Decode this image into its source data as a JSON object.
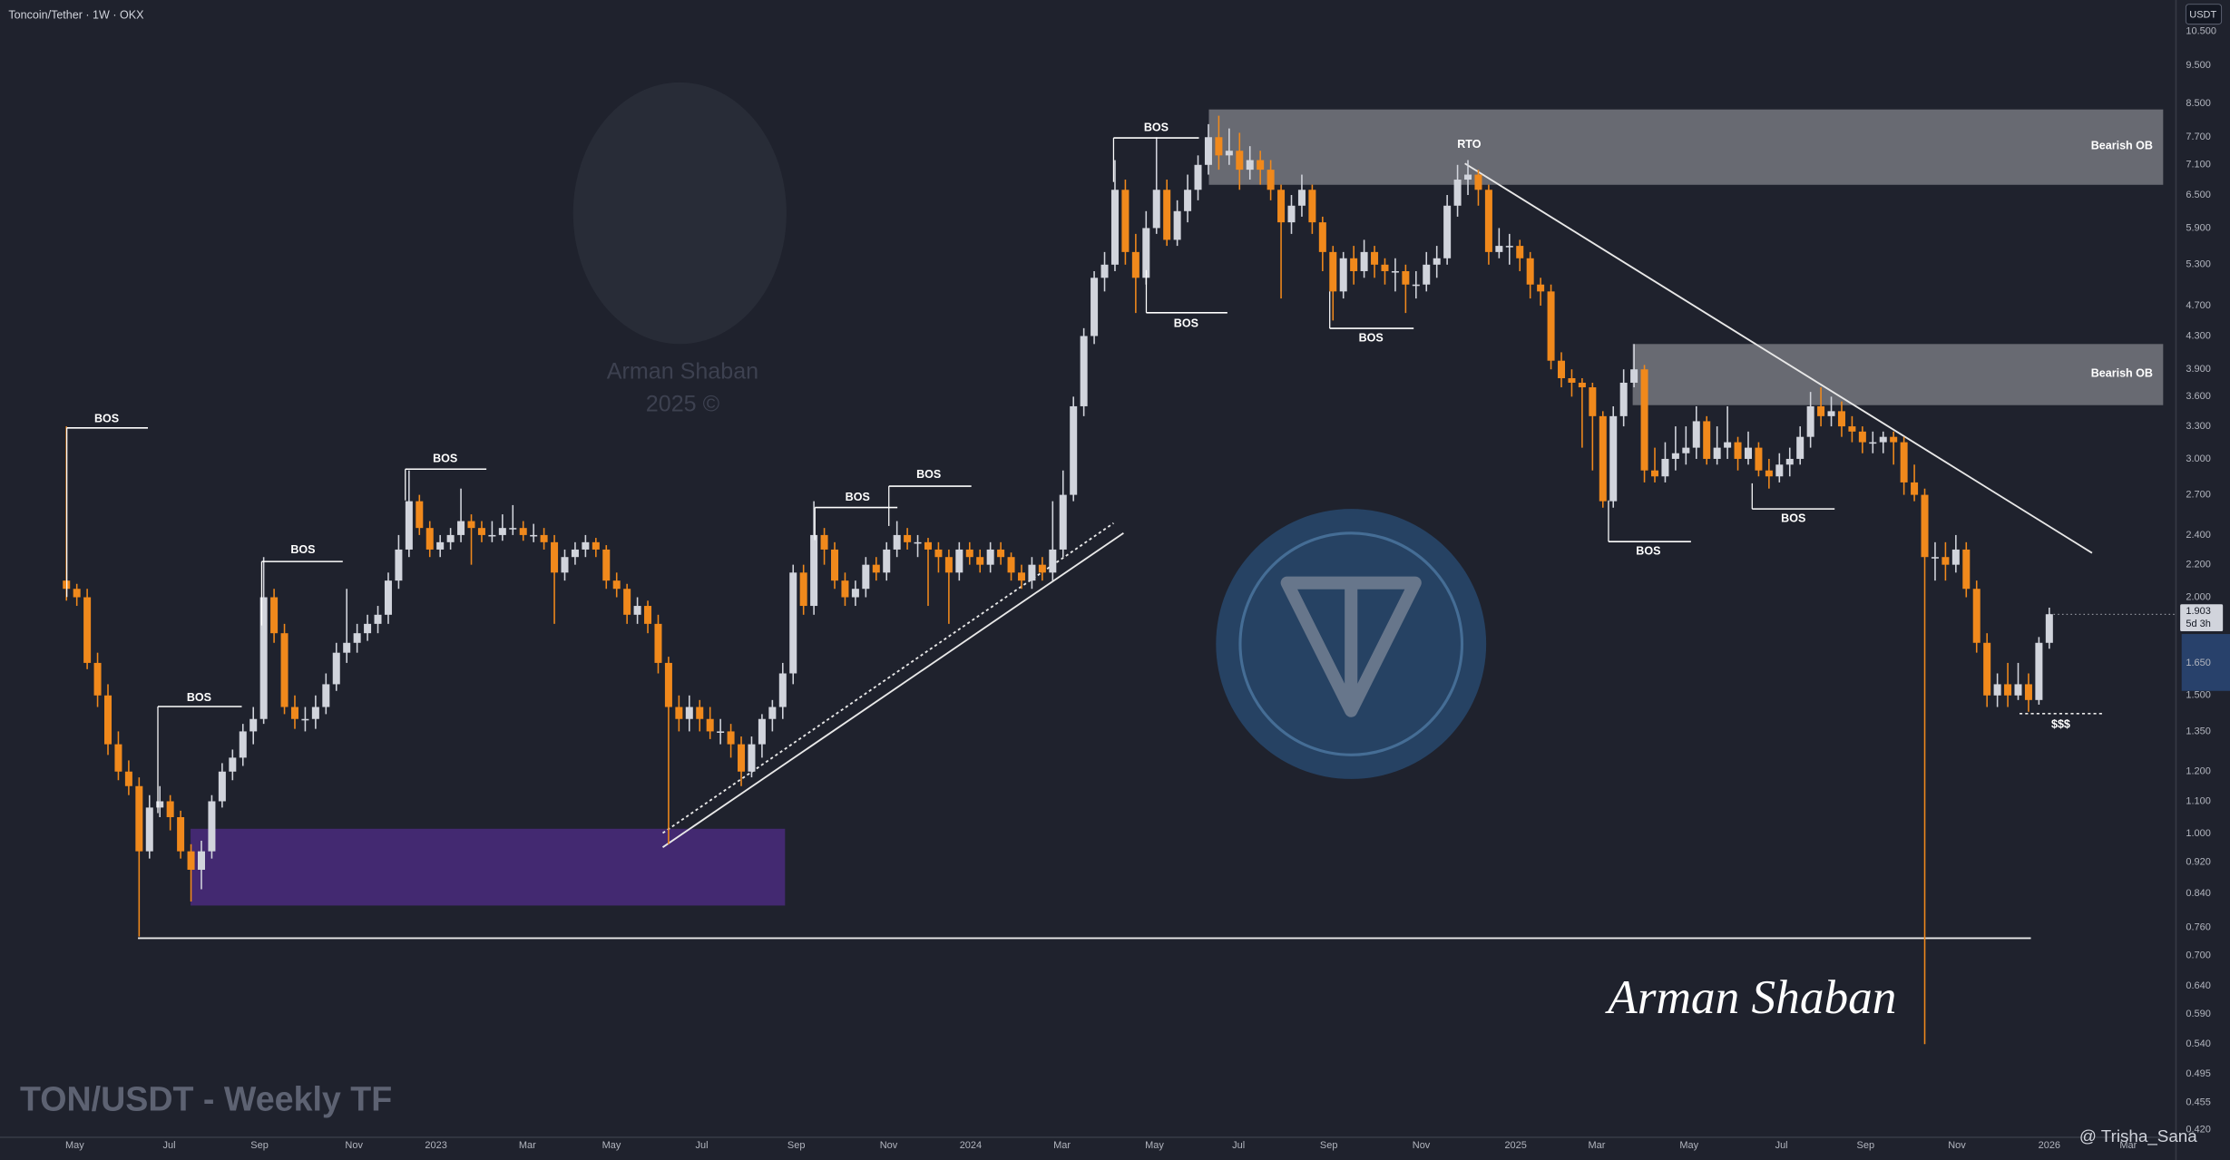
{
  "chart_data": {
    "type": "candlestick",
    "title": "Toncoin/Tether · 1W · OKX",
    "subtitle": "TON/USDT - Weekly TF",
    "currency": "USDT",
    "countdown": "5d 3h",
    "log_scale": true,
    "grid": false,
    "up_color": "#d1d4dc",
    "down_color": "#f0891c",
    "candles": [
      [
        2.1,
        3.3,
        1.98,
        2.05
      ],
      [
        2.05,
        2.08,
        1.95,
        2.0
      ],
      [
        2.0,
        2.05,
        1.62,
        1.65
      ],
      [
        1.65,
        1.7,
        1.45,
        1.5
      ],
      [
        1.5,
        1.55,
        1.26,
        1.3
      ],
      [
        1.3,
        1.35,
        1.17,
        1.2
      ],
      [
        1.2,
        1.24,
        1.12,
        1.15
      ],
      [
        1.15,
        1.18,
        0.74,
        0.95
      ],
      [
        0.95,
        1.12,
        0.93,
        1.08
      ],
      [
        1.08,
        1.15,
        1.05,
        1.1
      ],
      [
        1.1,
        1.12,
        1.01,
        1.05
      ],
      [
        1.05,
        1.07,
        0.93,
        0.95
      ],
      [
        0.95,
        0.97,
        0.82,
        0.9
      ],
      [
        0.9,
        0.98,
        0.85,
        0.95
      ],
      [
        0.95,
        1.12,
        0.93,
        1.1
      ],
      [
        1.1,
        1.23,
        1.08,
        1.2
      ],
      [
        1.2,
        1.28,
        1.17,
        1.25
      ],
      [
        1.25,
        1.38,
        1.22,
        1.35
      ],
      [
        1.35,
        1.45,
        1.3,
        1.4
      ],
      [
        1.4,
        2.25,
        1.38,
        2.0
      ],
      [
        2.0,
        2.05,
        1.75,
        1.8
      ],
      [
        1.8,
        1.85,
        1.42,
        1.45
      ],
      [
        1.45,
        1.5,
        1.36,
        1.4
      ],
      [
        1.4,
        1.45,
        1.35,
        1.4
      ],
      [
        1.4,
        1.5,
        1.36,
        1.45
      ],
      [
        1.45,
        1.6,
        1.42,
        1.55
      ],
      [
        1.55,
        1.75,
        1.52,
        1.7
      ],
      [
        1.7,
        2.05,
        1.65,
        1.75
      ],
      [
        1.75,
        1.85,
        1.7,
        1.8
      ],
      [
        1.8,
        1.9,
        1.76,
        1.85
      ],
      [
        1.85,
        1.95,
        1.8,
        1.9
      ],
      [
        1.9,
        2.15,
        1.85,
        2.1
      ],
      [
        2.1,
        2.4,
        2.05,
        2.3
      ],
      [
        2.3,
        2.9,
        2.25,
        2.65
      ],
      [
        2.65,
        2.7,
        2.4,
        2.45
      ],
      [
        2.45,
        2.5,
        2.25,
        2.3
      ],
      [
        2.3,
        2.4,
        2.25,
        2.35
      ],
      [
        2.35,
        2.45,
        2.3,
        2.4
      ],
      [
        2.4,
        2.75,
        2.35,
        2.5
      ],
      [
        2.5,
        2.55,
        2.2,
        2.45
      ],
      [
        2.45,
        2.5,
        2.35,
        2.4
      ],
      [
        2.4,
        2.5,
        2.35,
        2.4
      ],
      [
        2.4,
        2.55,
        2.36,
        2.45
      ],
      [
        2.45,
        2.62,
        2.4,
        2.45
      ],
      [
        2.45,
        2.5,
        2.36,
        2.4
      ],
      [
        2.4,
        2.48,
        2.35,
        2.4
      ],
      [
        2.4,
        2.45,
        2.3,
        2.35
      ],
      [
        2.35,
        2.4,
        1.85,
        2.15
      ],
      [
        2.15,
        2.3,
        2.1,
        2.25
      ],
      [
        2.25,
        2.35,
        2.2,
        2.3
      ],
      [
        2.3,
        2.4,
        2.25,
        2.35
      ],
      [
        2.35,
        2.38,
        2.25,
        2.3
      ],
      [
        2.3,
        2.33,
        2.05,
        2.1
      ],
      [
        2.1,
        2.15,
        2.0,
        2.05
      ],
      [
        2.05,
        2.08,
        1.85,
        1.9
      ],
      [
        1.9,
        2.0,
        1.85,
        1.95
      ],
      [
        1.95,
        1.98,
        1.8,
        1.85
      ],
      [
        1.85,
        1.9,
        1.6,
        1.65
      ],
      [
        1.65,
        1.68,
        0.97,
        1.45
      ],
      [
        1.45,
        1.5,
        1.35,
        1.4
      ],
      [
        1.4,
        1.5,
        1.35,
        1.45
      ],
      [
        1.45,
        1.48,
        1.35,
        1.4
      ],
      [
        1.4,
        1.45,
        1.32,
        1.35
      ],
      [
        1.35,
        1.4,
        1.3,
        1.35
      ],
      [
        1.35,
        1.38,
        1.25,
        1.3
      ],
      [
        1.3,
        1.33,
        1.15,
        1.2
      ],
      [
        1.2,
        1.33,
        1.18,
        1.3
      ],
      [
        1.3,
        1.42,
        1.25,
        1.4
      ],
      [
        1.4,
        1.48,
        1.35,
        1.45
      ],
      [
        1.45,
        1.65,
        1.4,
        1.6
      ],
      [
        1.6,
        2.2,
        1.55,
        2.15
      ],
      [
        2.15,
        2.2,
        1.9,
        1.95
      ],
      [
        1.95,
        2.65,
        1.9,
        2.4
      ],
      [
        2.4,
        2.45,
        2.2,
        2.3
      ],
      [
        2.3,
        2.35,
        2.05,
        2.1
      ],
      [
        2.1,
        2.15,
        1.95,
        2.0
      ],
      [
        2.0,
        2.1,
        1.95,
        2.05
      ],
      [
        2.05,
        2.25,
        2.0,
        2.2
      ],
      [
        2.2,
        2.25,
        2.1,
        2.15
      ],
      [
        2.15,
        2.35,
        2.1,
        2.3
      ],
      [
        2.3,
        2.5,
        2.25,
        2.4
      ],
      [
        2.4,
        2.45,
        2.3,
        2.35
      ],
      [
        2.35,
        2.4,
        2.25,
        2.35
      ],
      [
        2.35,
        2.38,
        1.95,
        2.3
      ],
      [
        2.3,
        2.35,
        2.15,
        2.25
      ],
      [
        2.25,
        2.3,
        1.85,
        2.15
      ],
      [
        2.15,
        2.35,
        2.1,
        2.3
      ],
      [
        2.3,
        2.35,
        2.2,
        2.25
      ],
      [
        2.25,
        2.3,
        2.15,
        2.2
      ],
      [
        2.2,
        2.35,
        2.15,
        2.3
      ],
      [
        2.3,
        2.35,
        2.2,
        2.25
      ],
      [
        2.25,
        2.28,
        2.1,
        2.15
      ],
      [
        2.15,
        2.2,
        2.05,
        2.1
      ],
      [
        2.1,
        2.25,
        2.05,
        2.2
      ],
      [
        2.2,
        2.25,
        2.1,
        2.15
      ],
      [
        2.15,
        2.65,
        2.1,
        2.3
      ],
      [
        2.3,
        2.9,
        2.25,
        2.7
      ],
      [
        2.7,
        3.6,
        2.65,
        3.5
      ],
      [
        3.5,
        4.4,
        3.4,
        4.3
      ],
      [
        4.3,
        5.2,
        4.2,
        5.1
      ],
      [
        5.1,
        5.5,
        4.9,
        5.3
      ],
      [
        5.3,
        7.2,
        5.2,
        6.6
      ],
      [
        6.6,
        6.8,
        5.3,
        5.5
      ],
      [
        5.5,
        5.8,
        4.6,
        5.1
      ],
      [
        5.1,
        6.2,
        5.0,
        5.9
      ],
      [
        5.9,
        7.7,
        5.8,
        6.6
      ],
      [
        6.6,
        6.8,
        5.6,
        5.7
      ],
      [
        5.7,
        6.4,
        5.6,
        6.2
      ],
      [
        6.2,
        6.9,
        6.0,
        6.6
      ],
      [
        6.6,
        7.3,
        6.4,
        7.1
      ],
      [
        7.1,
        8.0,
        6.9,
        7.7
      ],
      [
        7.7,
        8.2,
        7.0,
        7.3
      ],
      [
        7.3,
        7.9,
        7.1,
        7.4
      ],
      [
        7.4,
        7.8,
        6.6,
        7.0
      ],
      [
        7.0,
        7.5,
        6.8,
        7.2
      ],
      [
        7.2,
        7.4,
        6.7,
        7.0
      ],
      [
        7.0,
        7.2,
        6.4,
        6.6
      ],
      [
        6.6,
        6.7,
        4.8,
        6.0
      ],
      [
        6.0,
        6.5,
        5.8,
        6.3
      ],
      [
        6.3,
        6.9,
        6.1,
        6.6
      ],
      [
        6.6,
        6.7,
        5.8,
        6.0
      ],
      [
        6.0,
        6.1,
        5.2,
        5.5
      ],
      [
        5.5,
        5.6,
        4.5,
        4.9
      ],
      [
        4.9,
        5.5,
        4.8,
        5.4
      ],
      [
        5.4,
        5.6,
        5.0,
        5.2
      ],
      [
        5.2,
        5.7,
        5.1,
        5.5
      ],
      [
        5.5,
        5.6,
        5.1,
        5.3
      ],
      [
        5.3,
        5.4,
        5.0,
        5.2
      ],
      [
        5.2,
        5.4,
        4.9,
        5.2
      ],
      [
        5.2,
        5.3,
        4.6,
        5.0
      ],
      [
        5.0,
        5.2,
        4.8,
        5.0
      ],
      [
        5.0,
        5.5,
        4.9,
        5.3
      ],
      [
        5.3,
        5.6,
        5.1,
        5.4
      ],
      [
        5.4,
        6.5,
        5.3,
        6.3
      ],
      [
        6.3,
        7.1,
        6.1,
        6.8
      ],
      [
        6.8,
        7.2,
        6.5,
        6.9
      ],
      [
        6.9,
        7.0,
        6.3,
        6.6
      ],
      [
        6.6,
        6.7,
        5.3,
        5.5
      ],
      [
        5.5,
        5.9,
        5.4,
        5.6
      ],
      [
        5.6,
        5.8,
        5.3,
        5.6
      ],
      [
        5.6,
        5.7,
        5.2,
        5.4
      ],
      [
        5.4,
        5.5,
        4.8,
        5.0
      ],
      [
        5.0,
        5.1,
        4.7,
        4.9
      ],
      [
        4.9,
        5.0,
        3.9,
        4.0
      ],
      [
        4.0,
        4.1,
        3.7,
        3.8
      ],
      [
        3.8,
        3.9,
        3.6,
        3.75
      ],
      [
        3.75,
        3.8,
        3.1,
        3.7
      ],
      [
        3.7,
        3.75,
        2.9,
        3.4
      ],
      [
        3.4,
        3.45,
        2.6,
        2.65
      ],
      [
        2.65,
        3.5,
        2.6,
        3.4
      ],
      [
        3.4,
        3.9,
        3.3,
        3.75
      ],
      [
        3.75,
        4.2,
        3.7,
        3.9
      ],
      [
        3.9,
        3.95,
        2.8,
        2.9
      ],
      [
        2.9,
        3.1,
        2.8,
        2.85
      ],
      [
        2.85,
        3.15,
        2.8,
        3.0
      ],
      [
        3.0,
        3.3,
        2.9,
        3.05
      ],
      [
        3.05,
        3.3,
        2.95,
        3.1
      ],
      [
        3.1,
        3.5,
        3.0,
        3.35
      ],
      [
        3.35,
        3.4,
        2.95,
        3.0
      ],
      [
        3.0,
        3.3,
        2.95,
        3.1
      ],
      [
        3.1,
        3.5,
        3.0,
        3.15
      ],
      [
        3.15,
        3.2,
        2.9,
        3.0
      ],
      [
        3.0,
        3.25,
        2.95,
        3.1
      ],
      [
        3.1,
        3.15,
        2.85,
        2.9
      ],
      [
        2.9,
        3.0,
        2.75,
        2.85
      ],
      [
        2.85,
        3.05,
        2.8,
        2.95
      ],
      [
        2.95,
        3.1,
        2.85,
        3.0
      ],
      [
        3.0,
        3.3,
        2.95,
        3.2
      ],
      [
        3.2,
        3.65,
        3.1,
        3.5
      ],
      [
        3.5,
        3.7,
        3.3,
        3.4
      ],
      [
        3.4,
        3.6,
        3.3,
        3.45
      ],
      [
        3.45,
        3.55,
        3.2,
        3.3
      ],
      [
        3.3,
        3.4,
        3.15,
        3.25
      ],
      [
        3.25,
        3.3,
        3.05,
        3.15
      ],
      [
        3.15,
        3.25,
        3.05,
        3.15
      ],
      [
        3.15,
        3.25,
        3.05,
        3.2
      ],
      [
        3.2,
        3.25,
        2.95,
        3.15
      ],
      [
        3.15,
        3.2,
        2.7,
        2.8
      ],
      [
        2.8,
        2.95,
        2.65,
        2.7
      ],
      [
        2.7,
        2.75,
        0.54,
        2.25
      ],
      [
        2.25,
        2.35,
        2.1,
        2.25
      ],
      [
        2.25,
        2.35,
        2.1,
        2.2
      ],
      [
        2.2,
        2.4,
        2.15,
        2.3
      ],
      [
        2.3,
        2.35,
        2.0,
        2.05
      ],
      [
        2.05,
        2.1,
        1.7,
        1.75
      ],
      [
        1.75,
        1.8,
        1.45,
        1.5
      ],
      [
        1.5,
        1.6,
        1.45,
        1.55
      ],
      [
        1.55,
        1.65,
        1.45,
        1.5
      ],
      [
        1.5,
        1.65,
        1.48,
        1.55
      ],
      [
        1.55,
        1.6,
        1.43,
        1.48
      ],
      [
        1.48,
        1.78,
        1.46,
        1.75
      ],
      [
        1.75,
        1.94,
        1.72,
        1.903
      ]
    ],
    "xlim": [
      -6.4,
      203.2
    ],
    "xticks": [
      {
        "value": 0.8,
        "label": "May"
      },
      {
        "value": 9.9,
        "label": "Jul"
      },
      {
        "value": 18.6,
        "label": "Sep"
      },
      {
        "value": 27.7,
        "label": "Nov"
      },
      {
        "value": 35.6,
        "label": "2023"
      },
      {
        "value": 44.4,
        "label": "Mar"
      },
      {
        "value": 52.5,
        "label": "May"
      },
      {
        "value": 61.2,
        "label": "Jul"
      },
      {
        "value": 70.3,
        "label": "Sep"
      },
      {
        "value": 79.2,
        "label": "Nov"
      },
      {
        "value": 87.1,
        "label": "2024"
      },
      {
        "value": 95.9,
        "label": "Mar"
      },
      {
        "value": 104.8,
        "label": "May"
      },
      {
        "value": 112.9,
        "label": "Jul"
      },
      {
        "value": 121.6,
        "label": "Sep"
      },
      {
        "value": 130.5,
        "label": "Nov"
      },
      {
        "value": 139.6,
        "label": "2025"
      },
      {
        "value": 147.4,
        "label": "Mar"
      },
      {
        "value": 156.3,
        "label": "May"
      },
      {
        "value": 165.2,
        "label": "Jul"
      },
      {
        "value": 173.3,
        "label": "Sep"
      },
      {
        "value": 182.1,
        "label": "Nov"
      },
      {
        "value": 191.0,
        "label": "2026"
      },
      {
        "value": 198.6,
        "label": "Mar"
      }
    ],
    "ylim": [
      0.411,
      11.51
    ],
    "yticks": [
      {
        "value": 10.5,
        "label": "10.500"
      },
      {
        "value": 9.5,
        "label": "9.500"
      },
      {
        "value": 8.5,
        "label": "8.500"
      },
      {
        "value": 7.7,
        "label": "7.700"
      },
      {
        "value": 7.1,
        "label": "7.100"
      },
      {
        "value": 6.5,
        "label": "6.500"
      },
      {
        "value": 5.9,
        "label": "5.900"
      },
      {
        "value": 5.3,
        "label": "5.300"
      },
      {
        "value": 4.7,
        "label": "4.700"
      },
      {
        "value": 4.3,
        "label": "4.300"
      },
      {
        "value": 3.9,
        "label": "3.900"
      },
      {
        "value": 3.6,
        "label": "3.600"
      },
      {
        "value": 3.3,
        "label": "3.300"
      },
      {
        "value": 3,
        "label": "3.000"
      },
      {
        "value": 2.7,
        "label": "2.700"
      },
      {
        "value": 2.4,
        "label": "2.400"
      },
      {
        "value": 2.2,
        "label": "2.200"
      },
      {
        "value": 2,
        "label": "2.000"
      },
      {
        "value": 1.65,
        "label": "1.650"
      },
      {
        "value": 1.5,
        "label": "1.500"
      },
      {
        "value": 1.35,
        "label": "1.350"
      },
      {
        "value": 1.2,
        "label": "1.200"
      },
      {
        "value": 1.1,
        "label": "1.100"
      },
      {
        "value": 1,
        "label": "1.000"
      },
      {
        "value": 0.92,
        "label": "0.920"
      },
      {
        "value": 0.84,
        "label": "0.840"
      },
      {
        "value": 0.76,
        "label": "0.760"
      },
      {
        "value": 0.7,
        "label": "0.700"
      },
      {
        "value": 0.64,
        "label": "0.640"
      },
      {
        "value": 0.59,
        "label": "0.590"
      },
      {
        "value": 0.54,
        "label": "0.540"
      },
      {
        "value": 0.495,
        "label": "0.495"
      },
      {
        "value": 0.455,
        "label": "0.455"
      },
      {
        "value": 0.42,
        "label": "0.420"
      }
    ],
    "annotations": [
      "BOS",
      "BOS",
      "BOS",
      "BOS",
      "BOS",
      "BOS",
      "BOS",
      "BOS",
      "BOS",
      "BOS",
      "BOS",
      "RTO",
      "Bearish OB",
      "Bearish OB",
      "$$$"
    ],
    "watermark": [
      "Arman Shaban",
      "2025 ©"
    ],
    "signature": "Arman Shaban",
    "credit": "@ Trisha_Sana"
  }
}
